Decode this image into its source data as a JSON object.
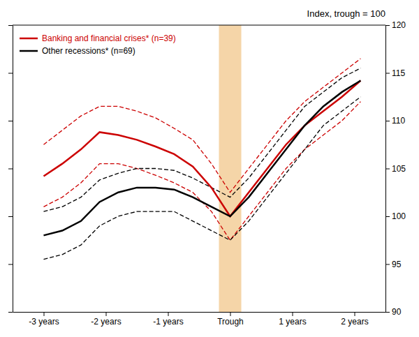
{
  "chart_data": {
    "type": "line",
    "title": "Index, trough = 100",
    "x": [
      -3.0,
      -2.7,
      -2.4,
      -2.1,
      -1.8,
      -1.5,
      -1.2,
      -0.9,
      -0.6,
      -0.3,
      0.0,
      0.3,
      0.6,
      0.9,
      1.2,
      1.5,
      1.8,
      2.1
    ],
    "series": [
      {
        "name": "Banking and financial crises* (n=39)",
        "color": "#cc0000",
        "line_style": "solid",
        "values": [
          104.2,
          105.5,
          107.0,
          108.8,
          108.5,
          108.0,
          107.3,
          106.5,
          105.2,
          103.0,
          100.0,
          102.5,
          105.0,
          107.5,
          109.5,
          111.0,
          112.5,
          114.2
        ],
        "upper": [
          107.5,
          109.0,
          110.5,
          111.5,
          111.5,
          111.0,
          110.3,
          109.2,
          108.0,
          105.5,
          102.5,
          105.0,
          107.5,
          110.0,
          112.0,
          113.5,
          115.0,
          116.5
        ],
        "lower": [
          101.0,
          102.0,
          103.5,
          105.5,
          105.5,
          105.0,
          104.3,
          103.5,
          102.5,
          100.5,
          97.5,
          100.0,
          102.5,
          105.0,
          107.0,
          108.5,
          110.0,
          112.0
        ]
      },
      {
        "name": "Other recessions* (n=69)",
        "color": "#000000",
        "line_style": "solid",
        "values": [
          98.0,
          98.5,
          99.5,
          101.5,
          102.5,
          103.0,
          103.0,
          102.8,
          102.0,
          101.0,
          100.0,
          102.0,
          104.5,
          107.0,
          109.5,
          111.5,
          113.0,
          114.2
        ],
        "upper": [
          100.5,
          101.0,
          102.0,
          103.8,
          104.5,
          105.0,
          105.0,
          104.8,
          104.0,
          103.0,
          102.0,
          104.0,
          106.5,
          109.0,
          111.5,
          113.0,
          114.5,
          115.5
        ],
        "lower": [
          95.5,
          96.0,
          97.0,
          99.0,
          100.0,
          100.5,
          100.5,
          100.5,
          99.5,
          98.5,
          97.5,
          99.5,
          102.0,
          104.5,
          107.0,
          109.5,
          111.0,
          112.5
        ]
      }
    ],
    "band": {
      "x": -0.18,
      "width": 0.36,
      "color": "#f5d5a8"
    },
    "xlim": [
      -3.5,
      2.5
    ],
    "xticks": [
      {
        "value": -3,
        "label": "-3 years"
      },
      {
        "value": -2,
        "label": "-2 years"
      },
      {
        "value": -1,
        "label": "-1 years"
      },
      {
        "value": 0,
        "label": "Trough"
      },
      {
        "value": 1,
        "label": "1 years"
      },
      {
        "value": 2,
        "label": "2 years"
      }
    ],
    "ylim": [
      90,
      120
    ],
    "yticks": [
      90,
      95,
      100,
      105,
      110,
      115,
      120
    ],
    "legend": "upper left",
    "grid": false
  }
}
